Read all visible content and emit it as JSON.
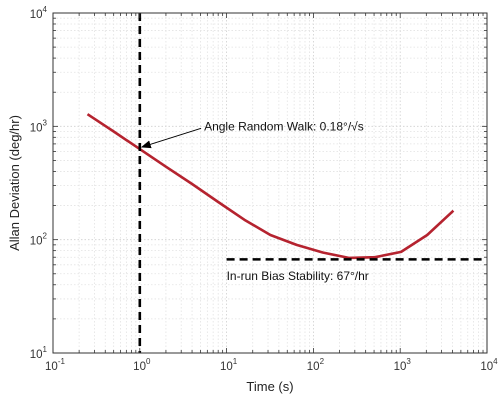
{
  "chart_data": {
    "type": "line",
    "xscale": "log",
    "yscale": "log",
    "xlim": [
      0.1,
      10000
    ],
    "ylim": [
      10,
      10000
    ],
    "grid": true,
    "xlabel": "Time (s)",
    "ylabel": "Allan Deviation (deg/hr)",
    "x_ticks": [
      {
        "base": "10",
        "exp": "-1",
        "value": 0.1
      },
      {
        "base": "10",
        "exp": "0",
        "value": 1
      },
      {
        "base": "10",
        "exp": "1",
        "value": 10
      },
      {
        "base": "10",
        "exp": "2",
        "value": 100
      },
      {
        "base": "10",
        "exp": "3",
        "value": 1000
      },
      {
        "base": "10",
        "exp": "4",
        "value": 10000
      }
    ],
    "y_ticks": [
      {
        "base": "10",
        "exp": "1",
        "value": 10
      },
      {
        "base": "10",
        "exp": "2",
        "value": 100
      },
      {
        "base": "10",
        "exp": "3",
        "value": 1000
      },
      {
        "base": "10",
        "exp": "4",
        "value": 10000
      }
    ],
    "series": [
      {
        "color": "#b5232f",
        "x": [
          0.25,
          0.5,
          1,
          2,
          4,
          8,
          16,
          32,
          64,
          128,
          256,
          512,
          1024,
          2048,
          4096
        ],
        "y": [
          1280,
          900,
          630,
          440,
          310,
          215,
          150,
          110,
          90,
          77,
          69,
          70,
          78,
          110,
          180
        ]
      }
    ],
    "reference_lines": [
      {
        "orientation": "vertical",
        "x": 1,
        "style": "dashed",
        "color": "#000000"
      },
      {
        "orientation": "horizontal",
        "y": 67,
        "x_from": 10,
        "x_to": 10000,
        "style": "dashed",
        "color": "#000000"
      }
    ],
    "annotations": [
      {
        "text": "Angle Random Walk: 0.18°/√s",
        "x": 5.5,
        "y": 1000,
        "arrow_to": {
          "x": 1,
          "y": 630
        }
      },
      {
        "text": "In-run Bias Stability: 67°/hr",
        "x": 10,
        "y": 48
      }
    ]
  }
}
